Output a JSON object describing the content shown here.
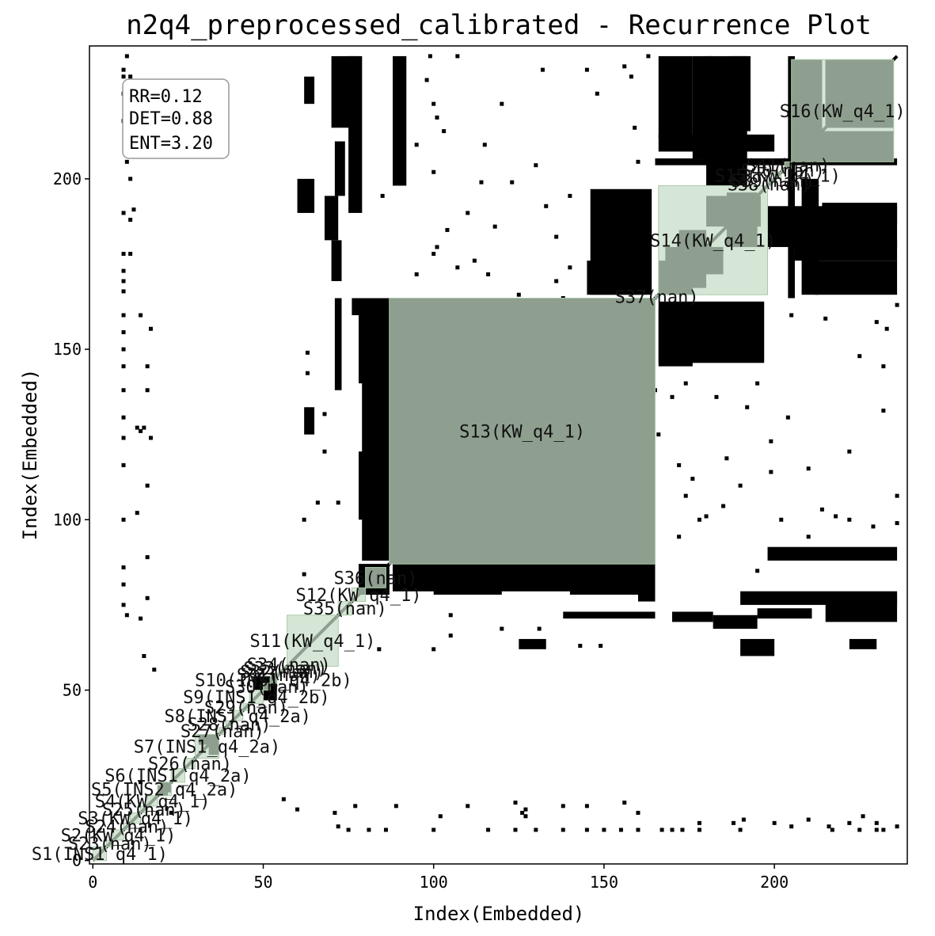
{
  "chart_data": {
    "type": "heatmap",
    "title": "n2q4_preprocessed_calibrated - Recurrence Plot",
    "xlabel": "Index(Embedded)",
    "ylabel": "Index(Embedded)",
    "xlim": [
      -1,
      239
    ],
    "ylim": [
      -1,
      239
    ],
    "xticks": [
      0,
      50,
      100,
      150,
      200
    ],
    "yticks": [
      0,
      50,
      100,
      150,
      200
    ],
    "colors": {
      "recurrence": "#000000",
      "segment_fill": "#c6dcc6",
      "segment_edge": "#a9c9a9",
      "background": "#ffffff"
    },
    "stats": {
      "rr": "RR=0.12",
      "det": "DET=0.88",
      "ent": "ENT=3.20"
    },
    "segments": [
      {
        "label": "S1(INS1_q4_1)",
        "start": 0,
        "end": 4
      },
      {
        "label": "S23(nan)",
        "start": 4,
        "end": 6
      },
      {
        "label": "S2(KW_q4_1)",
        "start": 6,
        "end": 9
      },
      {
        "label": "S24(nan)",
        "start": 9,
        "end": 11
      },
      {
        "label": "S3(KW_q4_1)",
        "start": 11,
        "end": 14
      },
      {
        "label": "S25(nan)",
        "start": 14,
        "end": 16
      },
      {
        "label": "S4(KW_q4_1)",
        "start": 16,
        "end": 19
      },
      {
        "label": "S5(INS2_q4_2a)",
        "start": 19,
        "end": 23
      },
      {
        "label": "S6(INS1_q4_2a)",
        "start": 23,
        "end": 27
      },
      {
        "label": "S26(nan)",
        "start": 27,
        "end": 30
      },
      {
        "label": "S7(INS1_q4_2a)",
        "start": 30,
        "end": 37
      },
      {
        "label": "S27(nan)",
        "start": 37,
        "end": 39
      },
      {
        "label": "S28(nan)",
        "start": 39,
        "end": 41
      },
      {
        "label": "S8(INS1_q4_2a)",
        "start": 41,
        "end": 44
      },
      {
        "label": "S29(nan)",
        "start": 44,
        "end": 46
      },
      {
        "label": "S9(INS1_q4_2b)",
        "start": 46,
        "end": 50
      },
      {
        "label": "S30(nan)",
        "start": 50,
        "end": 52
      },
      {
        "label": "S10(INS1_q4_2b)",
        "start": 52,
        "end": 54
      },
      {
        "label": "S31(nan)",
        "start": 54,
        "end": 55
      },
      {
        "label": "S32(nan)",
        "start": 55,
        "end": 56
      },
      {
        "label": "S33(nan)",
        "start": 56,
        "end": 57
      },
      {
        "label": "S34(nan)",
        "start": 57,
        "end": 58
      },
      {
        "label": "S11(KW_q4_1)",
        "start": 57,
        "end": 72
      },
      {
        "label": "S35(nan)",
        "start": 72,
        "end": 76
      },
      {
        "label": "S12(KW_q4_1)",
        "start": 76,
        "end": 80
      },
      {
        "label": "S36(nan)",
        "start": 80,
        "end": 86
      },
      {
        "label": "S13(KW_q4_1)",
        "start": 87,
        "end": 165
      },
      {
        "label": "S37(nan)",
        "start": 165,
        "end": 166
      },
      {
        "label": "S14(KW_q4_1)",
        "start": 166,
        "end": 198
      },
      {
        "label": "S38(nan)",
        "start": 198,
        "end": 199
      },
      {
        "label": "S39(nan)",
        "start": 199,
        "end": 200
      },
      {
        "label": "S15(KW_q4_1)",
        "start": 200,
        "end": 202
      },
      {
        "label": "S40(nan)",
        "start": 202,
        "end": 203
      },
      {
        "label": "S41(nan)",
        "start": 203,
        "end": 205
      },
      {
        "label": "S16(KW_q4_1)",
        "start": 205,
        "end": 235
      }
    ],
    "blocks": [
      [
        215,
        235,
        215,
        235
      ],
      [
        205,
        214,
        206,
        216
      ],
      [
        215,
        235,
        206,
        214
      ],
      [
        145,
        162,
        166,
        176
      ],
      [
        166,
        197,
        146,
        164
      ],
      [
        166,
        176,
        212,
        236
      ],
      [
        166,
        200,
        208,
        213
      ],
      [
        168,
        185,
        172,
        180
      ],
      [
        87,
        131,
        87,
        165
      ],
      [
        131,
        165,
        87,
        165
      ],
      [
        133,
        160,
        133,
        160
      ],
      [
        131,
        165,
        156,
        165
      ],
      [
        131,
        157,
        131,
        165
      ],
      [
        90,
        122,
        90,
        122
      ],
      [
        133,
        165,
        90,
        122
      ],
      [
        90,
        122,
        133,
        165
      ],
      [
        120,
        135,
        120,
        135
      ],
      [
        92,
        118,
        145,
        163
      ],
      [
        135,
        160,
        93,
        112
      ],
      [
        78,
        87,
        78,
        87
      ],
      [
        79,
        87,
        88,
        165
      ],
      [
        88,
        165,
        79,
        87
      ],
      [
        100,
        120,
        78,
        86
      ],
      [
        140,
        165,
        78,
        86
      ],
      [
        198,
        236,
        180,
        192
      ],
      [
        206,
        236,
        176,
        182
      ],
      [
        214,
        236,
        187,
        193
      ],
      [
        204,
        206,
        165,
        236
      ],
      [
        180,
        196,
        186,
        195
      ],
      [
        170,
        182,
        70,
        73
      ],
      [
        182,
        195,
        68,
        72
      ],
      [
        195,
        211,
        71,
        74
      ],
      [
        215,
        236,
        70,
        73
      ],
      [
        166,
        175,
        166,
        176
      ],
      [
        34,
        37,
        31,
        37
      ],
      [
        50,
        54,
        47,
        54
      ],
      [
        20,
        22,
        19,
        23
      ],
      [
        88,
        92,
        198,
        236
      ],
      [
        75,
        79,
        190,
        236
      ],
      [
        60,
        65,
        190,
        200
      ],
      [
        73,
        78,
        215,
        236
      ],
      [
        62,
        65,
        222,
        230
      ],
      [
        71,
        73,
        138,
        165
      ],
      [
        76,
        79,
        160,
        165
      ],
      [
        62,
        65,
        125,
        133
      ]
    ],
    "dots": [
      [
        9,
        230
      ],
      [
        9,
        232
      ],
      [
        9,
        225
      ],
      [
        9,
        217
      ],
      [
        9,
        190
      ],
      [
        9,
        178
      ],
      [
        9,
        173
      ],
      [
        9,
        167
      ],
      [
        9,
        160
      ],
      [
        9,
        155
      ],
      [
        9,
        150
      ],
      [
        9,
        145
      ],
      [
        9,
        138
      ],
      [
        9,
        130
      ],
      [
        9,
        124
      ],
      [
        9,
        116
      ],
      [
        9,
        100
      ],
      [
        9,
        86
      ],
      [
        9,
        81
      ],
      [
        9,
        75
      ],
      [
        14,
        126
      ],
      [
        63,
        149
      ],
      [
        63,
        143
      ],
      [
        68,
        131
      ],
      [
        68,
        120
      ],
      [
        62,
        100
      ],
      [
        62,
        84
      ],
      [
        66,
        105
      ],
      [
        72,
        105
      ],
      [
        90,
        214
      ],
      [
        101,
        218
      ],
      [
        103,
        214
      ],
      [
        115,
        210
      ],
      [
        120,
        222
      ],
      [
        132,
        232
      ],
      [
        130,
        204
      ],
      [
        145,
        232
      ],
      [
        148,
        225
      ],
      [
        156,
        233
      ],
      [
        159,
        215
      ],
      [
        158,
        230
      ],
      [
        160,
        205
      ],
      [
        163,
        236
      ],
      [
        181,
        224
      ],
      [
        183,
        232
      ],
      [
        186,
        210
      ],
      [
        190,
        216
      ],
      [
        195,
        140
      ],
      [
        192,
        133
      ],
      [
        186,
        118
      ],
      [
        199,
        123
      ],
      [
        195,
        85
      ],
      [
        176,
        112
      ],
      [
        180,
        101
      ],
      [
        185,
        104
      ],
      [
        190,
        110
      ],
      [
        199,
        114
      ],
      [
        202,
        100
      ],
      [
        210,
        95
      ],
      [
        222,
        100
      ],
      [
        229,
        98
      ],
      [
        236,
        107
      ],
      [
        236,
        99
      ],
      [
        77,
        16
      ],
      [
        89,
        16
      ],
      [
        102,
        13
      ],
      [
        110,
        16
      ],
      [
        124,
        17
      ],
      [
        127,
        13
      ],
      [
        138,
        16
      ],
      [
        145,
        16
      ],
      [
        156,
        17
      ],
      [
        160,
        14
      ],
      [
        170,
        9
      ],
      [
        178,
        11
      ],
      [
        188,
        11
      ],
      [
        191,
        12
      ],
      [
        200,
        11
      ],
      [
        205,
        10
      ],
      [
        210,
        12
      ],
      [
        216,
        10
      ],
      [
        222,
        11
      ],
      [
        226,
        13
      ],
      [
        230,
        11
      ],
      [
        236,
        10
      ],
      [
        72,
        10
      ],
      [
        71,
        14
      ],
      [
        56,
        18
      ],
      [
        60,
        15
      ],
      [
        23,
        14
      ],
      [
        127,
        15
      ],
      [
        178,
        100
      ],
      [
        172,
        95
      ],
      [
        165,
        138
      ],
      [
        174,
        140
      ],
      [
        183,
        136
      ],
      [
        160,
        121
      ],
      [
        140,
        121
      ],
      [
        142,
        112
      ],
      [
        156,
        100
      ],
      [
        150,
        109
      ],
      [
        116,
        172
      ],
      [
        125,
        166
      ],
      [
        136,
        170
      ],
      [
        107,
        174
      ]
    ]
  }
}
